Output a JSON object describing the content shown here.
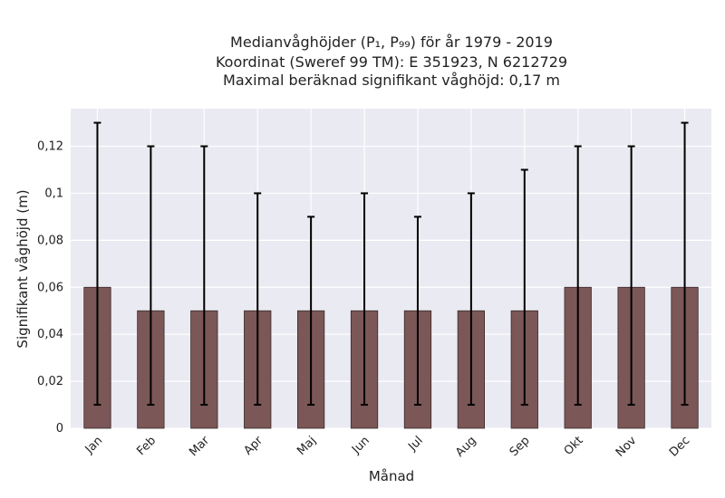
{
  "chart_data": {
    "type": "bar",
    "title_lines": [
      "Medianvåghöjder (P₁, P₉₉) för år 1979 - 2019",
      "Koordinat (Sweref 99 TM): E 351923, N 6212729",
      "Maximal beräknad signifikant våghöjd: 0,17 m"
    ],
    "xlabel": "Månad",
    "ylabel": "Signifikant våghöjd (m)",
    "categories": [
      "Jan",
      "Feb",
      "Mar",
      "Apr",
      "Maj",
      "Jun",
      "Jul",
      "Aug",
      "Sep",
      "Okt",
      "Nov",
      "Dec"
    ],
    "values": [
      0.06,
      0.05,
      0.05,
      0.05,
      0.05,
      0.05,
      0.05,
      0.05,
      0.05,
      0.06,
      0.06,
      0.06
    ],
    "err_low": [
      0.01,
      0.01,
      0.01,
      0.01,
      0.01,
      0.01,
      0.01,
      0.01,
      0.01,
      0.01,
      0.01,
      0.01
    ],
    "err_high": [
      0.13,
      0.12,
      0.12,
      0.1,
      0.09,
      0.1,
      0.09,
      0.1,
      0.11,
      0.12,
      0.12,
      0.13
    ],
    "ylim": [
      0,
      0.136
    ],
    "yticks": [
      0,
      0.02,
      0.04,
      0.06,
      0.08,
      0.1,
      0.12
    ],
    "ytick_labels": [
      "0",
      "0,02",
      "0,04",
      "0,06",
      "0,08",
      "0,1",
      "0,12"
    ],
    "grid": true,
    "colors": {
      "bar": "#7b5757",
      "bar_edge": "#3a2a2a",
      "background": "#eaeaf2",
      "grid": "#ffffff",
      "error": "#000000"
    }
  }
}
